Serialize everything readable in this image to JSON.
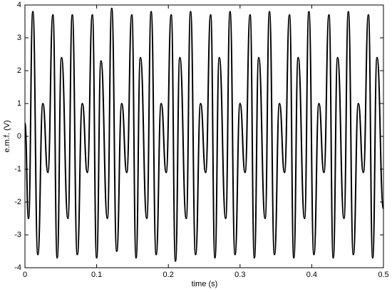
{
  "chart_data": {
    "type": "line",
    "xlabel": "time (s)",
    "ylabel": "e.m.f. (V)",
    "xlim": [
      0,
      0.5
    ],
    "ylim": [
      -4,
      4
    ],
    "xticks": [
      0,
      0.1,
      0.2,
      0.3,
      0.4,
      0.5
    ],
    "yticks": [
      -4,
      -3,
      -2,
      -1,
      0,
      1,
      2,
      3,
      4
    ],
    "grid": false,
    "series": [
      {
        "color": "#000000",
        "x": [
          0,
          0.005,
          0.011,
          0.018,
          0.025,
          0.032,
          0.039,
          0.045,
          0.051,
          0.06,
          0.066,
          0.073,
          0.08,
          0.087,
          0.094,
          0.1,
          0.106,
          0.115,
          0.121,
          0.128,
          0.135,
          0.142,
          0.149,
          0.155,
          0.161,
          0.17,
          0.176,
          0.183,
          0.19,
          0.197,
          0.204,
          0.21,
          0.216,
          0.225,
          0.231,
          0.238,
          0.245,
          0.252,
          0.259,
          0.265,
          0.271,
          0.28,
          0.286,
          0.293,
          0.3,
          0.307,
          0.314,
          0.32,
          0.326,
          0.335,
          0.341,
          0.348,
          0.355,
          0.362,
          0.369,
          0.375,
          0.381,
          0.39,
          0.396,
          0.403,
          0.41,
          0.417,
          0.424,
          0.43,
          0.436,
          0.445,
          0.451,
          0.458,
          0.465,
          0.472,
          0.479,
          0.485,
          0.491,
          0.5
        ],
        "values": [
          0.4,
          -2.5,
          3.8,
          -3.6,
          1.0,
          -1.1,
          3.7,
          -3.7,
          2.4,
          -2.5,
          3.7,
          -3.6,
          1.0,
          -1.1,
          3.7,
          -3.7,
          2.3,
          -2.5,
          3.9,
          -3.5,
          1.0,
          -1.1,
          3.7,
          -3.7,
          2.4,
          -2.5,
          3.8,
          -3.6,
          1.0,
          -1.1,
          3.7,
          -3.8,
          2.4,
          -2.5,
          3.8,
          -3.6,
          1.0,
          -1.1,
          3.7,
          -3.7,
          2.4,
          -2.5,
          3.8,
          -3.6,
          1.0,
          -1.1,
          3.7,
          -3.7,
          2.4,
          -2.5,
          3.8,
          -3.6,
          1.0,
          -1.1,
          3.7,
          -3.7,
          2.4,
          -2.5,
          3.8,
          -3.6,
          1.0,
          -1.1,
          3.7,
          -3.7,
          2.4,
          -2.5,
          3.8,
          -3.6,
          1.0,
          -1.1,
          3.7,
          -3.7,
          2.4,
          -2.2
        ]
      }
    ]
  }
}
